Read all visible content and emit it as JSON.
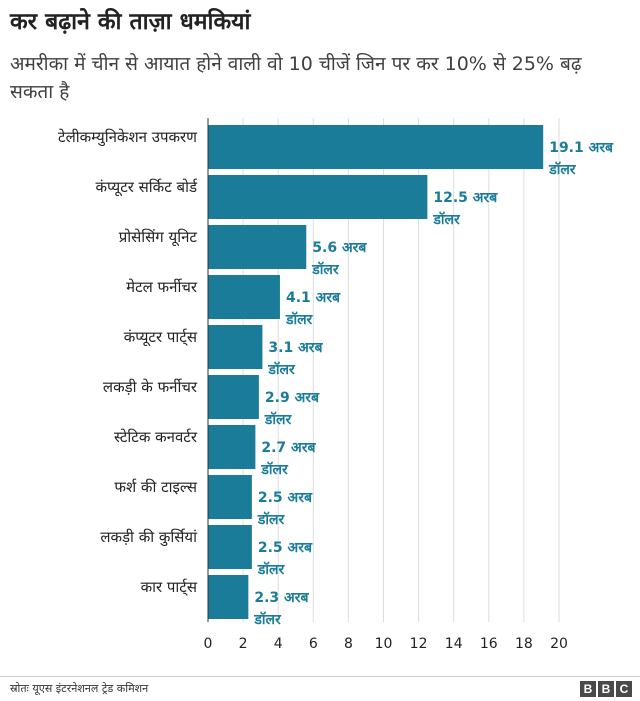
{
  "title": "कर बढ़ाने की ताज़ा धमकियां",
  "subtitle": "अमरीका में चीन से आयात होने वाली वो 10 चीजें जिन पर कर 10% से 25% बढ़ सकता है",
  "source": "स्रोतः यूएस इंटरनेशनल ट्रेड कमिशन",
  "logo": [
    "B",
    "B",
    "C"
  ],
  "colors": {
    "bar": "#1a7c99",
    "value_label": "#1a7c99",
    "grid": "#dddddd"
  },
  "chart_data": {
    "type": "bar",
    "orientation": "horizontal",
    "categories": [
      "टेलीकम्युनिकेशन उपकरण",
      "कंप्यूटर सर्किट बोर्ड",
      "प्रोसेसिंग यूनिट",
      "मेटल फर्नीचर",
      "कंप्यूटर पार्ट्स",
      "लकड़ी के फर्नीचर",
      "स्टेटिक कनवर्टर",
      "फर्श की टाइल्स",
      "लकड़ी की कुर्सियां",
      "कार पार्ट्स"
    ],
    "values": [
      19.1,
      12.5,
      5.6,
      4.1,
      3.1,
      2.9,
      2.7,
      2.5,
      2.5,
      2.3
    ],
    "value_labels": [
      [
        "19.1 अरब",
        "डॉलर"
      ],
      [
        "12.5 अरब",
        "डॉलर"
      ],
      [
        "5.6 अरब",
        "डॉलर"
      ],
      [
        "4.1 अरब",
        "डॉलर"
      ],
      [
        "3.1 अरब",
        "डॉलर"
      ],
      [
        "2.9 अरब",
        "डॉलर"
      ],
      [
        "2.7 अरब",
        "डॉलर"
      ],
      [
        "2.5 अरब",
        "डॉलर"
      ],
      [
        "2.5 अरब",
        "डॉलर"
      ],
      [
        "2.3 अरब",
        "डॉलर"
      ]
    ],
    "xlim": [
      0,
      22
    ],
    "xticks": [
      0,
      2,
      4,
      6,
      8,
      10,
      12,
      14,
      16,
      18,
      20
    ],
    "grid": true
  }
}
